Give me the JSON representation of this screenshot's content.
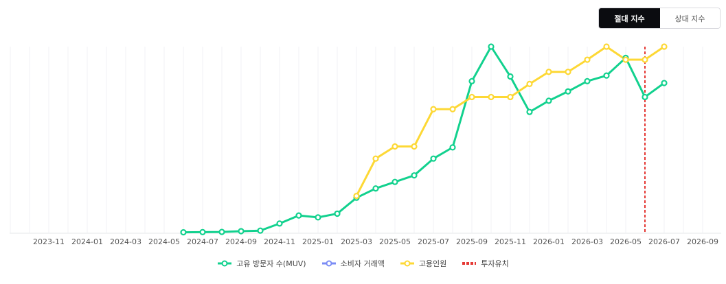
{
  "toggle": {
    "absolute_label": "절대 지수",
    "relative_label": "상대 지수"
  },
  "chart_data": {
    "type": "line",
    "title": "",
    "xlabel": "",
    "ylabel": "",
    "grid": true,
    "legend_position": "bottom",
    "x_ticks": [
      "2023-11",
      "2024-01",
      "2024-03",
      "2024-05",
      "2024-07",
      "2024-09",
      "2024-11",
      "2025-01",
      "2025-03",
      "2025-05",
      "2025-07",
      "2025-09",
      "2025-11",
      "2026-01",
      "2026-03",
      "2026-05",
      "2026-07",
      "2026-09"
    ],
    "ylim": [
      0,
      100
    ],
    "series": [
      {
        "name": "고유 방문자 수(MUV)",
        "color": "#12d18e",
        "x": [
          "2024-06",
          "2024-07",
          "2024-08",
          "2024-09",
          "2024-10",
          "2024-11",
          "2024-12",
          "2025-01",
          "2025-02",
          "2025-03",
          "2025-04",
          "2025-05",
          "2025-06",
          "2025-07",
          "2025-08",
          "2025-09",
          "2025-10",
          "2025-11",
          "2025-12",
          "2026-01",
          "2026-02",
          "2026-03",
          "2026-04",
          "2026-05",
          "2026-06",
          "2026-07"
        ],
        "y": [
          0.5,
          0.6,
          0.7,
          1.1,
          1.4,
          5.2,
          9.5,
          8.5,
          10.5,
          19,
          24,
          27.5,
          31,
          40,
          46,
          81.5,
          100,
          84,
          65,
          71,
          76,
          81.5,
          84.5,
          94,
          73,
          80.5
        ]
      },
      {
        "name": "소비자 거래액",
        "color": "#7b8cf5",
        "x": [],
        "y": []
      },
      {
        "name": "고용인원",
        "color": "#fdd835",
        "x": [
          "2025-03",
          "2025-04",
          "2025-05",
          "2025-06",
          "2025-07",
          "2025-08",
          "2025-09",
          "2025-10",
          "2025-11",
          "2025-12",
          "2026-01",
          "2026-02",
          "2026-03",
          "2026-04",
          "2026-05",
          "2026-06",
          "2026-07"
        ],
        "y": [
          20,
          40,
          46.5,
          46.5,
          66.5,
          66.5,
          73,
          73,
          73,
          80,
          86.5,
          86.5,
          93,
          100,
          93,
          93,
          100
        ]
      }
    ],
    "markers": [
      {
        "name": "투자유치",
        "x": "2026-06",
        "color": "#e53935"
      }
    ]
  }
}
